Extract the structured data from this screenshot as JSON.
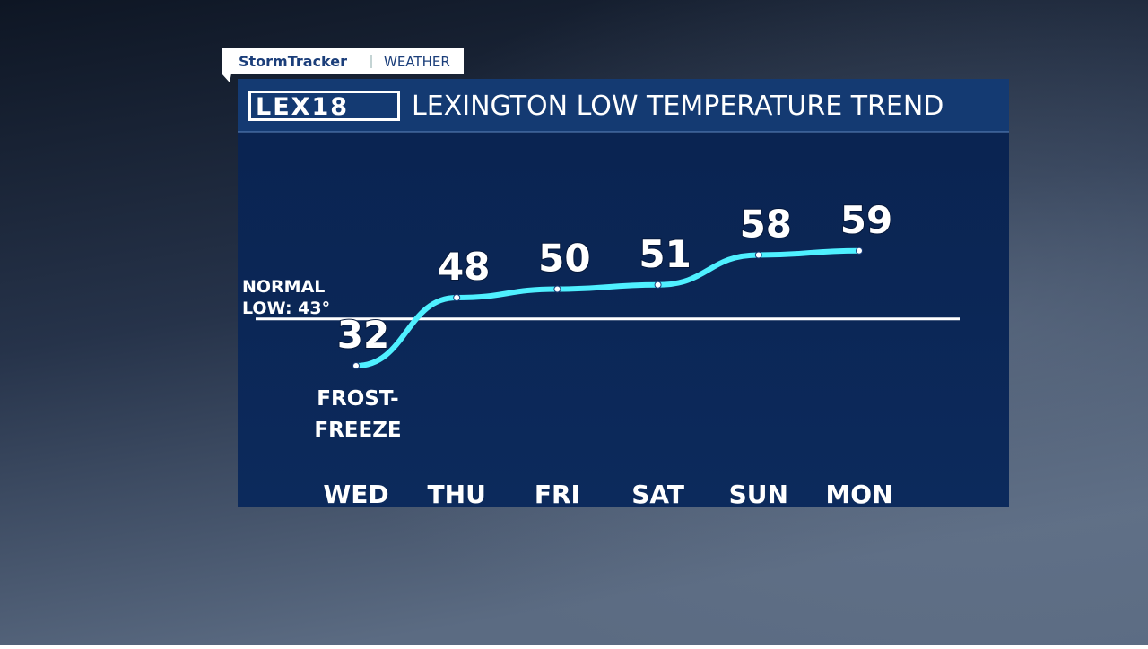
{
  "brand": {
    "tab_left": "StormTracker",
    "tab_right": "WEATHER",
    "logo": "LEX18"
  },
  "chart_data": {
    "type": "line",
    "title": "LEXINGTON LOW TEMPERATURE TREND",
    "categories": [
      "WED",
      "THU",
      "FRI",
      "SAT",
      "SUN",
      "MON"
    ],
    "series": [
      {
        "name": "Low temperature",
        "color": "#4ff0ff",
        "values": [
          32,
          48,
          50,
          51,
          58,
          59
        ]
      }
    ],
    "ylim": [
      0,
      88
    ],
    "reference_line": {
      "value": 43,
      "label": [
        "NORMAL",
        "LOW: 43°"
      ]
    },
    "annotation": [
      "FROST-",
      "FREEZE"
    ]
  }
}
